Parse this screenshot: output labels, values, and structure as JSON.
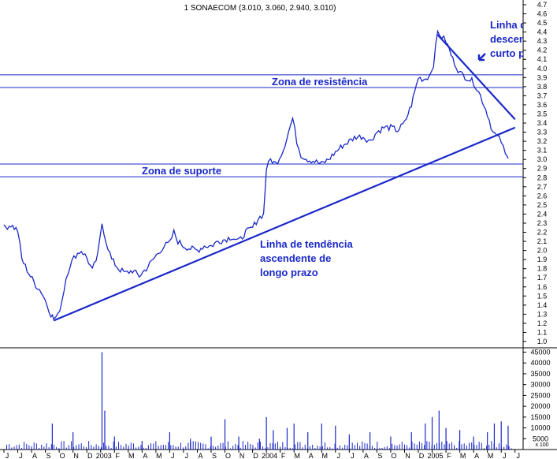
{
  "chart_data": {
    "type": "line",
    "title": "1 SONAECOM (3.010, 3.060, 2.940, 3.010)",
    "price_axis": {
      "ylim": [
        1.0,
        4.7
      ],
      "ticks": [
        "4.7",
        "4.6",
        "4.5",
        "4.4",
        "4.3",
        "4.2",
        "4.1",
        "4.0",
        "3.9",
        "3.8",
        "3.7",
        "3.6",
        "3.5",
        "3.4",
        "3.3",
        "3.2",
        "3.1",
        "3.0",
        "2.9",
        "2.8",
        "2.7",
        "2.6",
        "2.5",
        "2.4",
        "2.3",
        "2.2",
        "2.1",
        "2.0",
        "1.9",
        "1.8",
        "1.7",
        "1.6",
        "1.5",
        "1.4",
        "1.3",
        "1.2",
        "1.1",
        "1.0"
      ]
    },
    "volume_axis": {
      "ylim": [
        0,
        47000
      ],
      "ticks": [
        "45000",
        "40000",
        "35000",
        "30000",
        "25000",
        "20000",
        "15000",
        "10000",
        "5000"
      ],
      "unit_label": "x 100"
    },
    "x_axis": {
      "ticks": [
        {
          "label": "J",
          "t": 0
        },
        {
          "label": "J",
          "t": 1
        },
        {
          "label": "A",
          "t": 2
        },
        {
          "label": "S",
          "t": 3
        },
        {
          "label": "O",
          "t": 4
        },
        {
          "label": "N",
          "t": 5
        },
        {
          "label": "D",
          "t": 6
        },
        {
          "label": "2003",
          "t": 7
        },
        {
          "label": "F",
          "t": 8
        },
        {
          "label": "M",
          "t": 9
        },
        {
          "label": "A",
          "t": 10
        },
        {
          "label": "M",
          "t": 11
        },
        {
          "label": "J",
          "t": 12
        },
        {
          "label": "J",
          "t": 13
        },
        {
          "label": "A",
          "t": 14
        },
        {
          "label": "S",
          "t": 15
        },
        {
          "label": "O",
          "t": 16
        },
        {
          "label": "N",
          "t": 17
        },
        {
          "label": "D",
          "t": 18
        },
        {
          "label": "2004",
          "t": 19
        },
        {
          "label": "F",
          "t": 20
        },
        {
          "label": "M",
          "t": 21
        },
        {
          "label": "A",
          "t": 22
        },
        {
          "label": "M",
          "t": 23
        },
        {
          "label": "J",
          "t": 24
        },
        {
          "label": "J",
          "t": 25
        },
        {
          "label": "A",
          "t": 26
        },
        {
          "label": "S",
          "t": 27
        },
        {
          "label": "O",
          "t": 28
        },
        {
          "label": "N",
          "t": 29
        },
        {
          "label": "D",
          "t": 30
        },
        {
          "label": "2005",
          "t": 31
        },
        {
          "label": "F",
          "t": 32
        },
        {
          "label": "M",
          "t": 33
        },
        {
          "label": "A",
          "t": 34
        },
        {
          "label": "M",
          "t": 35
        },
        {
          "label": "J",
          "t": 36
        },
        {
          "label": "J",
          "t": 37
        }
      ]
    },
    "series": [
      {
        "points": [
          [
            0,
            2.25
          ],
          [
            0.5,
            2.28
          ],
          [
            1,
            2.22
          ],
          [
            1.3,
            1.9
          ],
          [
            1.8,
            1.75
          ],
          [
            2.3,
            1.62
          ],
          [
            2.7,
            1.55
          ],
          [
            3,
            1.45
          ],
          [
            3.4,
            1.3
          ],
          [
            3.6,
            1.25
          ],
          [
            3.9,
            1.28
          ],
          [
            4.2,
            1.45
          ],
          [
            4.5,
            1.7
          ],
          [
            4.8,
            1.85
          ],
          [
            5.2,
            1.95
          ],
          [
            5.6,
            2.0
          ],
          [
            6,
            1.92
          ],
          [
            6.4,
            1.78
          ],
          [
            6.8,
            1.95
          ],
          [
            7.1,
            2.3
          ],
          [
            7.4,
            2.1
          ],
          [
            7.8,
            1.9
          ],
          [
            8.3,
            1.8
          ],
          [
            8.8,
            1.75
          ],
          [
            9.3,
            1.78
          ],
          [
            9.8,
            1.72
          ],
          [
            10.3,
            1.8
          ],
          [
            10.8,
            1.9
          ],
          [
            11.3,
            2.0
          ],
          [
            11.6,
            2.05
          ],
          [
            12.0,
            2.08
          ],
          [
            12.3,
            2.2
          ],
          [
            12.6,
            2.1
          ],
          [
            13.0,
            2.05
          ],
          [
            13.5,
            2.02
          ],
          [
            14.0,
            2.0
          ],
          [
            14.5,
            2.05
          ],
          [
            15.0,
            2.05
          ],
          [
            15.5,
            2.1
          ],
          [
            16.0,
            2.12
          ],
          [
            16.5,
            2.15
          ],
          [
            17.0,
            2.1
          ],
          [
            17.5,
            2.2
          ],
          [
            18.0,
            2.25
          ],
          [
            18.4,
            2.35
          ],
          [
            18.8,
            2.4
          ],
          [
            19.0,
            2.9
          ],
          [
            19.3,
            3.0
          ],
          [
            19.7,
            2.95
          ],
          [
            20.2,
            3.1
          ],
          [
            20.6,
            3.3
          ],
          [
            20.9,
            3.45
          ],
          [
            21.2,
            3.2
          ],
          [
            21.5,
            3.05
          ],
          [
            22.0,
            3.0
          ],
          [
            22.5,
            2.98
          ],
          [
            23.0,
            2.95
          ],
          [
            23.5,
            3.0
          ],
          [
            24.0,
            3.08
          ],
          [
            24.5,
            3.15
          ],
          [
            25.0,
            3.2
          ],
          [
            25.5,
            3.25
          ],
          [
            26.0,
            3.25
          ],
          [
            26.5,
            3.2
          ],
          [
            27.0,
            3.3
          ],
          [
            27.5,
            3.35
          ],
          [
            28.0,
            3.35
          ],
          [
            28.5,
            3.32
          ],
          [
            29.0,
            3.4
          ],
          [
            29.5,
            3.6
          ],
          [
            30.0,
            3.9
          ],
          [
            30.4,
            3.88
          ],
          [
            30.8,
            3.92
          ],
          [
            31.1,
            4.05
          ],
          [
            31.4,
            4.4
          ],
          [
            31.7,
            4.35
          ],
          [
            32.0,
            4.3
          ],
          [
            32.5,
            4.1
          ],
          [
            33.0,
            3.95
          ],
          [
            33.5,
            3.9
          ],
          [
            34.0,
            3.85
          ],
          [
            34.5,
            3.7
          ],
          [
            35.0,
            3.5
          ],
          [
            35.4,
            3.3
          ],
          [
            35.7,
            3.25
          ],
          [
            36.0,
            3.2
          ],
          [
            36.3,
            3.05
          ],
          [
            36.5,
            3.01
          ]
        ]
      }
    ],
    "volume": [
      [
        3.5,
        12000
      ],
      [
        5,
        8000
      ],
      [
        7.1,
        45000
      ],
      [
        7.3,
        18000
      ],
      [
        8,
        6000
      ],
      [
        10,
        4000
      ],
      [
        12,
        8000
      ],
      [
        13.5,
        5000
      ],
      [
        15,
        6000
      ],
      [
        16,
        14000
      ],
      [
        17,
        6000
      ],
      [
        18.5,
        5000
      ],
      [
        19,
        15000
      ],
      [
        19.5,
        9000
      ],
      [
        20.5,
        10000
      ],
      [
        21,
        12000
      ],
      [
        22,
        8000
      ],
      [
        23,
        12000
      ],
      [
        24,
        11000
      ],
      [
        25,
        7000
      ],
      [
        26.5,
        8000
      ],
      [
        28,
        6000
      ],
      [
        29.5,
        8000
      ],
      [
        30.5,
        12000
      ],
      [
        31,
        15000
      ],
      [
        31.5,
        18000
      ],
      [
        32,
        10000
      ],
      [
        33,
        9000
      ],
      [
        34,
        6000
      ],
      [
        35,
        8000
      ],
      [
        35.5,
        12000
      ],
      [
        36,
        13000
      ],
      [
        36.5,
        11000
      ]
    ],
    "lines": [
      {
        "kind": "resistance",
        "y": 3.93
      },
      {
        "kind": "resistance",
        "y": 3.79
      },
      {
        "kind": "support",
        "y": 2.95
      },
      {
        "kind": "support",
        "y": 2.81
      },
      {
        "kind": "trend-long",
        "from": [
          3.6,
          1.23
        ],
        "to": [
          37,
          3.35
        ]
      },
      {
        "kind": "trend-short",
        "from": [
          31.4,
          4.37
        ],
        "to": [
          37,
          3.44
        ]
      }
    ],
    "annotations": [
      "Zona de resistência",
      "Zona de suporte",
      "Linha de tendência ascendente de longo prazo",
      "Linha de tendência descendente de curto prazo"
    ]
  }
}
